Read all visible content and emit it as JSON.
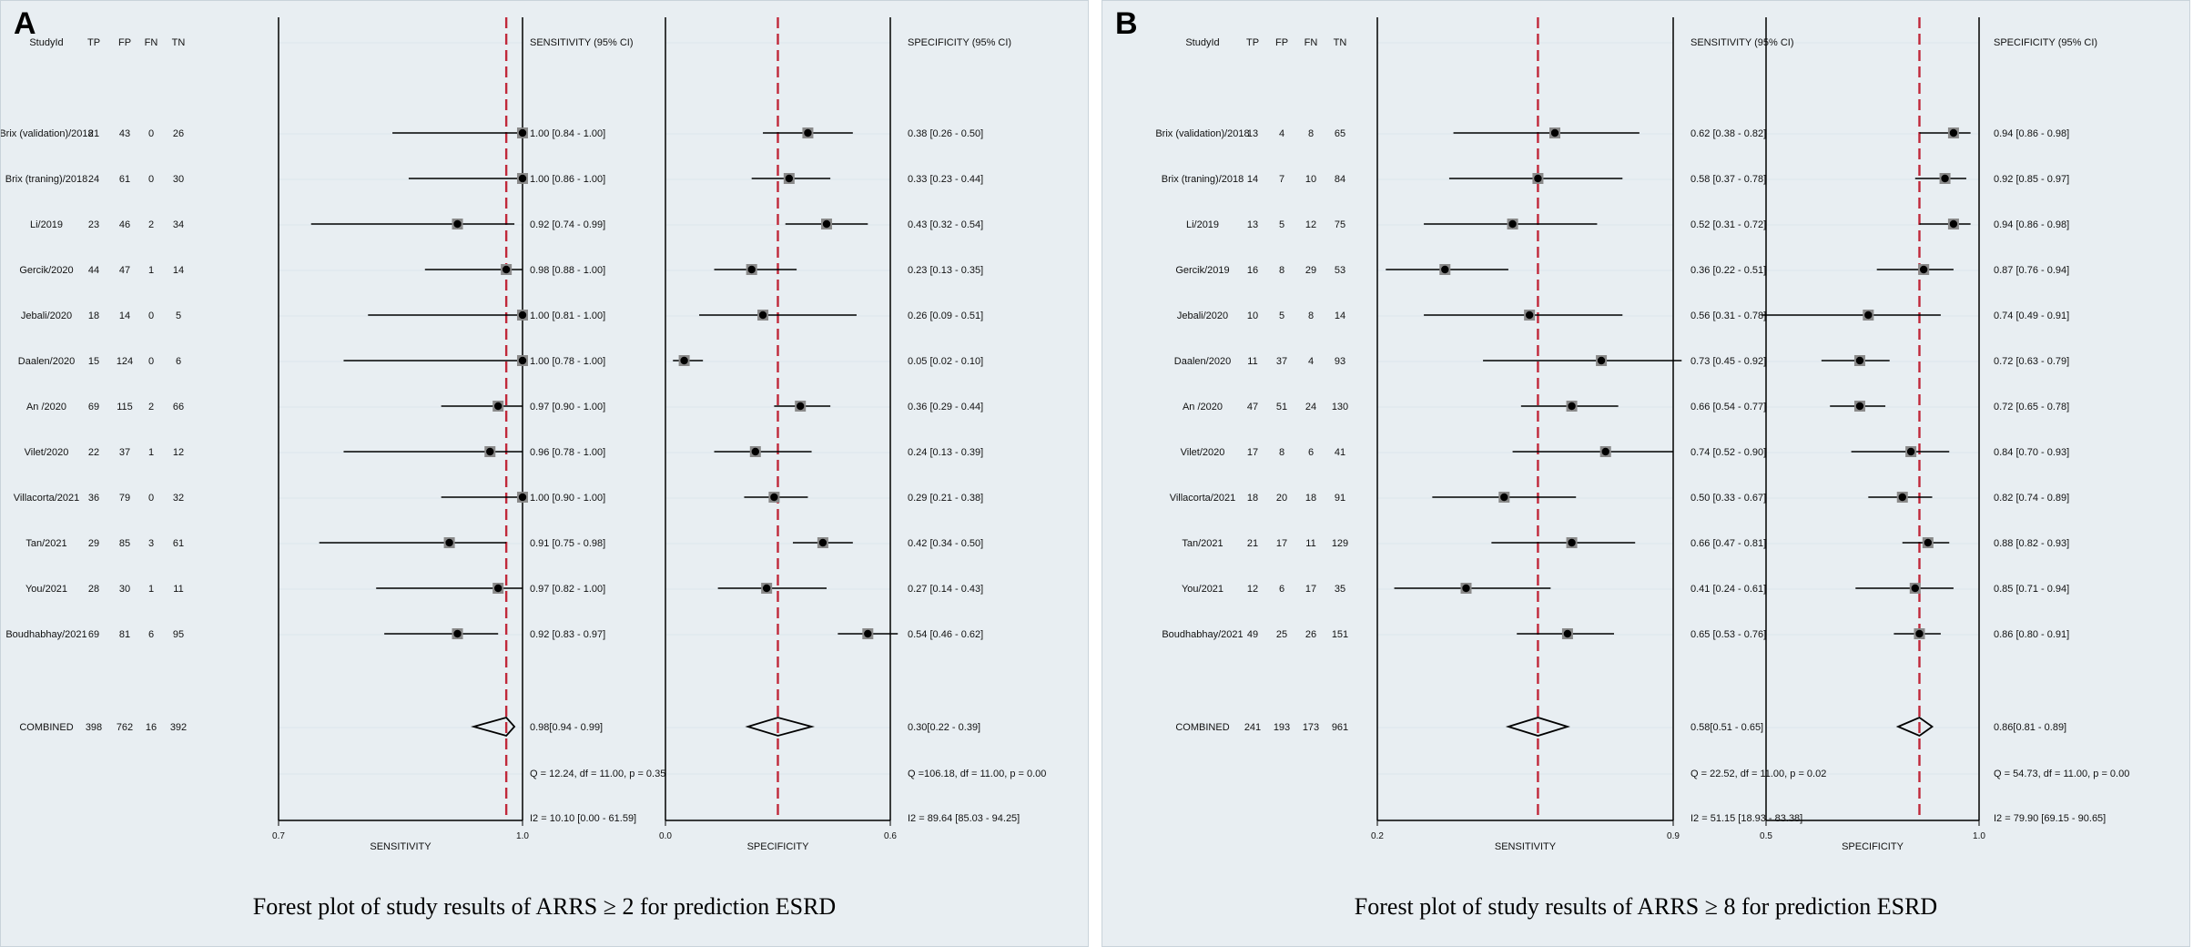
{
  "panels": [
    {
      "letter": "A",
      "caption": "Forest plot of study results of ARRS ≥ 2 for prediction ESRD",
      "headers": [
        "StudyId",
        "TP",
        "FP",
        "FN",
        "TN"
      ],
      "sens_header": "SENSITIVITY (95% CI)",
      "spec_header": "SPECIFICITY (95% CI)",
      "rows": [
        {
          "study": "Brix (validation)/2018",
          "tp": "21",
          "fp": "43",
          "fn": "0",
          "tn": "26"
        },
        {
          "study": "Brix (traning)/2018",
          "tp": "24",
          "fp": "61",
          "fn": "0",
          "tn": "30"
        },
        {
          "study": "Li/2019",
          "tp": "23",
          "fp": "46",
          "fn": "2",
          "tn": "34"
        },
        {
          "study": "Gercik/2020",
          "tp": "44",
          "fp": "47",
          "fn": "1",
          "tn": "14"
        },
        {
          "study": "Jebali/2020",
          "tp": "18",
          "fp": "14",
          "fn": "0",
          "tn": "5"
        },
        {
          "study": "Daalen/2020",
          "tp": "15",
          "fp": "124",
          "fn": "0",
          "tn": "6"
        },
        {
          "study": "An /2020",
          "tp": "69",
          "fp": "115",
          "fn": "2",
          "tn": "66"
        },
        {
          "study": "Vilet/2020",
          "tp": "22",
          "fp": "37",
          "fn": "1",
          "tn": "12"
        },
        {
          "study": "Villacorta/2021",
          "tp": "36",
          "fp": "79",
          "fn": "0",
          "tn": "32"
        },
        {
          "study": "Tan/2021",
          "tp": "29",
          "fp": "85",
          "fn": "3",
          "tn": "61"
        },
        {
          "study": "You/2021",
          "tp": "28",
          "fp": "30",
          "fn": "1",
          "tn": "11"
        },
        {
          "study": "Boudhabhay/2021",
          "tp": "69",
          "fp": "81",
          "fn": "6",
          "tn": "95"
        }
      ],
      "combined": {
        "label": "COMBINED",
        "tp": "398",
        "fp": "762",
        "fn": "16",
        "tn": "392"
      },
      "stats": {
        "sens_q": "Q = 12.24, df = 11.00, p =  0.35",
        "sens_i2": "I2 = 10.10 [0.00 - 61.59]",
        "spec_q": "Q =106.18, df = 11.00, p =  0.00",
        "spec_i2": "I2 = 89.64 [85.03 - 94.25]"
      },
      "chart_data": [
        {
          "type": "forest",
          "xlabel": "SENSITIVITY",
          "xlim": [
            0.7,
            1.0
          ],
          "tick_labels": [
            "0.7",
            "1.0"
          ],
          "pooled_line": 0.98,
          "values": [
            1.0,
            1.0,
            0.92,
            0.98,
            1.0,
            1.0,
            0.97,
            0.96,
            1.0,
            0.91,
            0.97,
            0.92
          ],
          "lower": [
            0.84,
            0.86,
            0.74,
            0.88,
            0.81,
            0.78,
            0.9,
            0.78,
            0.9,
            0.75,
            0.82,
            0.83
          ],
          "upper": [
            1.0,
            1.0,
            0.99,
            1.0,
            1.0,
            1.0,
            1.0,
            1.0,
            1.0,
            0.98,
            1.0,
            0.97
          ],
          "ci_labels": [
            "1.00 [0.84 - 1.00]",
            "1.00 [0.86 - 1.00]",
            "0.92 [0.74 - 0.99]",
            "0.98 [0.88 - 1.00]",
            "1.00 [0.81 - 1.00]",
            "1.00 [0.78 - 1.00]",
            "0.97 [0.90 - 1.00]",
            "0.96 [0.78 - 1.00]",
            "1.00 [0.90 - 1.00]",
            "0.91 [0.75 - 0.98]",
            "0.97 [0.82 - 1.00]",
            "0.92 [0.83 - 0.97]"
          ],
          "combined": {
            "value": 0.98,
            "lower": 0.94,
            "upper": 0.99,
            "label": "0.98[0.94 - 0.99]"
          }
        },
        {
          "type": "forest",
          "xlabel": "SPECIFICITY",
          "xlim": [
            0.0,
            0.6
          ],
          "tick_labels": [
            "0.0",
            "0.6"
          ],
          "pooled_line": 0.3,
          "values": [
            0.38,
            0.33,
            0.43,
            0.23,
            0.26,
            0.05,
            0.36,
            0.24,
            0.29,
            0.42,
            0.27,
            0.54
          ],
          "lower": [
            0.26,
            0.23,
            0.32,
            0.13,
            0.09,
            0.02,
            0.29,
            0.13,
            0.21,
            0.34,
            0.14,
            0.46
          ],
          "upper": [
            0.5,
            0.44,
            0.54,
            0.35,
            0.51,
            0.1,
            0.44,
            0.39,
            0.38,
            0.5,
            0.43,
            0.62
          ],
          "ci_labels": [
            "0.38 [0.26 - 0.50]",
            "0.33 [0.23 - 0.44]",
            "0.43 [0.32 - 0.54]",
            "0.23 [0.13 - 0.35]",
            "0.26 [0.09 - 0.51]",
            "0.05 [0.02 - 0.10]",
            "0.36 [0.29 - 0.44]",
            "0.24 [0.13 - 0.39]",
            "0.29 [0.21 - 0.38]",
            "0.42 [0.34 - 0.50]",
            "0.27 [0.14 - 0.43]",
            "0.54 [0.46 - 0.62]"
          ],
          "combined": {
            "value": 0.3,
            "lower": 0.22,
            "upper": 0.39,
            "label": "0.30[0.22 - 0.39]"
          }
        }
      ]
    },
    {
      "letter": "B",
      "caption": "Forest plot of study results of ARRS ≥ 8 for prediction ESRD",
      "headers": [
        "StudyId",
        "TP",
        "FP",
        "FN",
        "TN"
      ],
      "sens_header": "SENSITIVITY (95% CI)",
      "spec_header": "SPECIFICITY (95% CI)",
      "rows": [
        {
          "study": "Brix (validation)/2018",
          "tp": "13",
          "fp": "4",
          "fn": "8",
          "tn": "65"
        },
        {
          "study": "Brix (traning)/2018",
          "tp": "14",
          "fp": "7",
          "fn": "10",
          "tn": "84"
        },
        {
          "study": "Li/2019",
          "tp": "13",
          "fp": "5",
          "fn": "12",
          "tn": "75"
        },
        {
          "study": "Gercik/2019",
          "tp": "16",
          "fp": "8",
          "fn": "29",
          "tn": "53"
        },
        {
          "study": "Jebali/2020",
          "tp": "10",
          "fp": "5",
          "fn": "8",
          "tn": "14"
        },
        {
          "study": "Daalen/2020",
          "tp": "11",
          "fp": "37",
          "fn": "4",
          "tn": "93"
        },
        {
          "study": "An /2020",
          "tp": "47",
          "fp": "51",
          "fn": "24",
          "tn": "130"
        },
        {
          "study": "Vilet/2020",
          "tp": "17",
          "fp": "8",
          "fn": "6",
          "tn": "41"
        },
        {
          "study": "Villacorta/2021",
          "tp": "18",
          "fp": "20",
          "fn": "18",
          "tn": "91"
        },
        {
          "study": "Tan/2021",
          "tp": "21",
          "fp": "17",
          "fn": "11",
          "tn": "129"
        },
        {
          "study": "You/2021",
          "tp": "12",
          "fp": "6",
          "fn": "17",
          "tn": "35"
        },
        {
          "study": "Boudhabhay/2021",
          "tp": "49",
          "fp": "25",
          "fn": "26",
          "tn": "151"
        }
      ],
      "combined": {
        "label": "COMBINED",
        "tp": "241",
        "fp": "193",
        "fn": "173",
        "tn": "961"
      },
      "stats": {
        "sens_q": "Q = 22.52, df = 11.00, p =  0.02",
        "sens_i2": "I2 = 51.15 [18.93 - 83.38]",
        "spec_q": "Q = 54.73, df = 11.00, p =  0.00",
        "spec_i2": "I2 = 79.90 [69.15 - 90.65]"
      },
      "chart_data": [
        {
          "type": "forest",
          "xlabel": "SENSITIVITY",
          "xlim": [
            0.2,
            0.9
          ],
          "tick_labels": [
            "0.2",
            "0.9"
          ],
          "pooled_line": 0.58,
          "values": [
            0.62,
            0.58,
            0.52,
            0.36,
            0.56,
            0.73,
            0.66,
            0.74,
            0.5,
            0.66,
            0.41,
            0.65
          ],
          "lower": [
            0.38,
            0.37,
            0.31,
            0.22,
            0.31,
            0.45,
            0.54,
            0.52,
            0.33,
            0.47,
            0.24,
            0.53
          ],
          "upper": [
            0.82,
            0.78,
            0.72,
            0.51,
            0.78,
            0.92,
            0.77,
            0.9,
            0.67,
            0.81,
            0.61,
            0.76
          ],
          "ci_labels": [
            "0.62 [0.38 - 0.82]",
            "0.58 [0.37 - 0.78]",
            "0.52 [0.31 - 0.72]",
            "0.36 [0.22 - 0.51]",
            "0.56 [0.31 - 0.78]",
            "0.73 [0.45 - 0.92]",
            "0.66 [0.54 - 0.77]",
            "0.74 [0.52 - 0.90]",
            "0.50 [0.33 - 0.67]",
            "0.66 [0.47 - 0.81]",
            "0.41 [0.24 - 0.61]",
            "0.65 [0.53 - 0.76]"
          ],
          "combined": {
            "value": 0.58,
            "lower": 0.51,
            "upper": 0.65,
            "label": "0.58[0.51 - 0.65]"
          }
        },
        {
          "type": "forest",
          "xlabel": "SPECIFICITY",
          "xlim": [
            0.5,
            1.0
          ],
          "tick_labels": [
            "0.5",
            "1.0"
          ],
          "pooled_line": 0.86,
          "values": [
            0.94,
            0.92,
            0.94,
            0.87,
            0.74,
            0.72,
            0.72,
            0.84,
            0.82,
            0.88,
            0.85,
            0.86
          ],
          "lower": [
            0.86,
            0.85,
            0.86,
            0.76,
            0.49,
            0.63,
            0.65,
            0.7,
            0.74,
            0.82,
            0.71,
            0.8
          ],
          "upper": [
            0.98,
            0.97,
            0.98,
            0.94,
            0.91,
            0.79,
            0.78,
            0.93,
            0.89,
            0.93,
            0.94,
            0.91
          ],
          "ci_labels": [
            "0.94 [0.86 - 0.98]",
            "0.92 [0.85 - 0.97]",
            "0.94 [0.86 - 0.98]",
            "0.87 [0.76 - 0.94]",
            "0.74 [0.49 - 0.91]",
            "0.72 [0.63 - 0.79]",
            "0.72 [0.65 - 0.78]",
            "0.84 [0.70 - 0.93]",
            "0.82 [0.74 - 0.89]",
            "0.88 [0.82 - 0.93]",
            "0.85 [0.71 - 0.94]",
            "0.86 [0.80 - 0.91]"
          ],
          "combined": {
            "value": 0.86,
            "lower": 0.81,
            "upper": 0.89,
            "label": "0.86[0.81 - 0.89]"
          }
        }
      ]
    }
  ]
}
